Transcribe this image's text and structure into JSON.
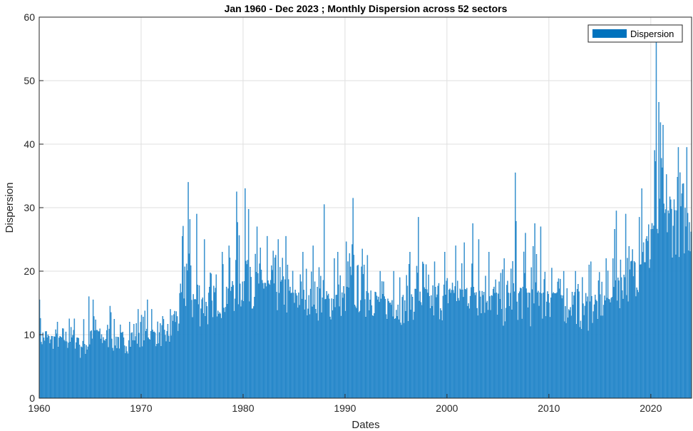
{
  "chart_data": {
    "type": "bar",
    "title": "Jan 1960 - Dec 2023 ; Monthly Dispersion across 52 sectors",
    "xlabel": "Dates",
    "ylabel": "Dispersion",
    "x_range": [
      1960,
      2024
    ],
    "ylim": [
      0,
      60
    ],
    "x_ticks": [
      1960,
      1970,
      1980,
      1990,
      2000,
      2010,
      2020
    ],
    "y_ticks": [
      0,
      10,
      20,
      30,
      40,
      50,
      60
    ],
    "grid": true,
    "legend": {
      "position": "top-right",
      "entries": [
        "Dispersion"
      ]
    },
    "series": [
      {
        "name": "Dispersion",
        "color": "#0072BD",
        "bar_face_color": "#4a9cd6",
        "periods": [
          "1960-01",
          "2023-12"
        ],
        "frequency": "monthly",
        "yearly_typical": [
          9.5,
          9.5,
          9.5,
          9.5,
          8.5,
          10.5,
          9.5,
          9.5,
          9.0,
          10.0,
          10.5,
          10.0,
          10.0,
          13.0,
          20.0,
          15.5,
          14.5,
          16.5,
          17.0,
          18.0,
          21.0,
          18.0,
          17.5,
          17.5,
          16.5,
          16.5,
          16.5,
          17.0,
          15.5,
          16.0,
          17.5,
          17.0,
          16.5,
          15.5,
          15.0,
          14.5,
          16.0,
          16.5,
          15.5,
          16.0,
          17.0,
          17.0,
          17.0,
          16.5,
          16.0,
          15.5,
          16.5,
          16.5,
          16.5,
          16.5,
          16.5,
          16.0,
          16.0,
          14.5,
          15.0,
          15.5,
          18.5,
          19.0,
          21.0,
          24.0,
          27.0,
          29.0,
          29.5,
          28.0
        ],
        "yearly_min": [
          7.5,
          7.5,
          7.0,
          7.5,
          6.0,
          8.0,
          7.5,
          7.0,
          7.0,
          8.0,
          8.0,
          8.0,
          7.5,
          8.5,
          12.0,
          11.0,
          11.0,
          12.5,
          12.0,
          13.0,
          14.0,
          13.5,
          13.0,
          13.0,
          12.5,
          12.5,
          13.0,
          12.0,
          12.0,
          12.5,
          12.5,
          13.0,
          12.5,
          12.0,
          12.0,
          11.5,
          12.0,
          12.0,
          11.5,
          12.0,
          13.0,
          13.0,
          13.0,
          12.5,
          12.0,
          11.0,
          12.0,
          12.0,
          11.0,
          12.0,
          12.0,
          11.5,
          11.5,
          10.5,
          11.0,
          11.5,
          14.0,
          15.0,
          16.0,
          18.0,
          21.0,
          24.0,
          22.0,
          22.0
        ],
        "yearly_max": [
          15.5,
          12.0,
          12.5,
          12.5,
          16.0,
          15.5,
          14.5,
          13.5,
          12.0,
          14.0,
          15.5,
          14.0,
          14.0,
          18.0,
          34.0,
          29.0,
          25.0,
          23.0,
          24.0,
          32.5,
          33.0,
          27.0,
          25.5,
          25.0,
          25.5,
          23.0,
          24.0,
          30.5,
          22.0,
          23.0,
          31.5,
          23.5,
          22.5,
          20.0,
          20.0,
          19.0,
          23.0,
          28.5,
          21.5,
          23.0,
          24.0,
          24.5,
          27.5,
          25.0,
          23.0,
          22.0,
          35.5,
          26.0,
          27.5,
          27.0,
          20.5,
          20.0,
          20.0,
          21.0,
          21.5,
          22.0,
          29.5,
          29.0,
          28.5,
          33.0,
          56.5,
          43.0,
          39.5,
          39.5
        ]
      }
    ]
  }
}
